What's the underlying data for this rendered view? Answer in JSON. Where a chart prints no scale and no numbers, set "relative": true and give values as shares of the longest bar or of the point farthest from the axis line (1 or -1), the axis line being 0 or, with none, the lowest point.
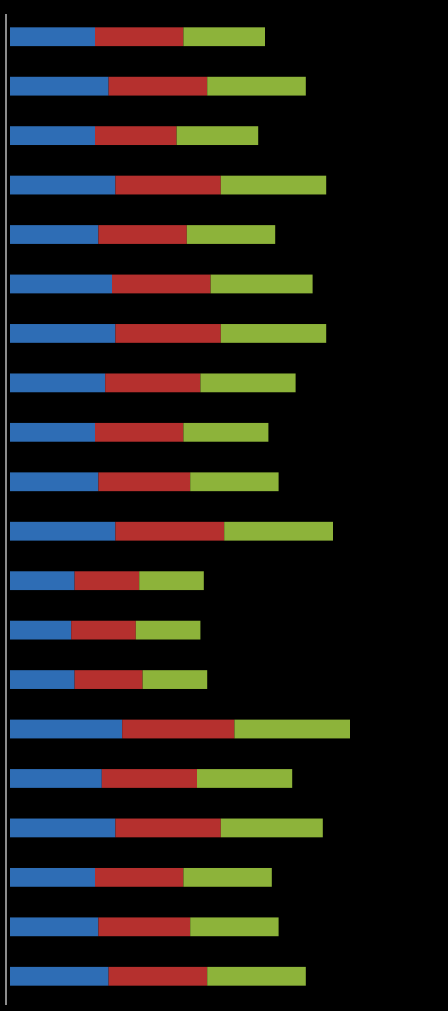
{
  "chart_data": {
    "type": "bar",
    "orientation": "horizontal",
    "stacked": true,
    "relative": true,
    "categories": [
      null,
      null,
      null,
      null,
      null,
      null,
      null,
      null,
      null,
      null,
      null,
      null,
      null,
      null,
      null,
      null,
      null,
      null,
      null,
      null
    ],
    "series": [
      {
        "color": "#2e6db5",
        "values": [
          0.25,
          0.29,
          0.25,
          0.31,
          0.26,
          0.3,
          0.31,
          0.28,
          0.25,
          0.26,
          0.31,
          0.19,
          0.18,
          0.19,
          0.33,
          0.27,
          0.31,
          0.25,
          0.26,
          0.29
        ]
      },
      {
        "color": "#b5302e",
        "values": [
          0.26,
          0.29,
          0.24,
          0.31,
          0.26,
          0.29,
          0.31,
          0.28,
          0.26,
          0.27,
          0.32,
          0.19,
          0.19,
          0.2,
          0.33,
          0.28,
          0.31,
          0.26,
          0.27,
          0.29
        ]
      },
      {
        "color": "#8db33a",
        "values": [
          0.24,
          0.29,
          0.24,
          0.31,
          0.26,
          0.3,
          0.31,
          0.28,
          0.25,
          0.26,
          0.32,
          0.19,
          0.19,
          0.19,
          0.34,
          0.28,
          0.3,
          0.26,
          0.26,
          0.29
        ]
      }
    ]
  }
}
